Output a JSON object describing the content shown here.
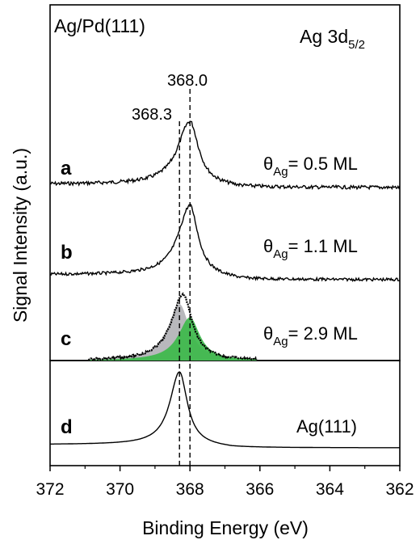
{
  "chart_data": {
    "type": "line",
    "title": "",
    "corner_left": "Ag/Pd(111)",
    "corner_right": {
      "main": "Ag 3d",
      "sub": "5/2"
    },
    "xlabel": "Binding Energy (eV)",
    "ylabel": "Signal Intensity (a.u.)",
    "xlim": [
      372,
      362
    ],
    "x_reversed": true,
    "x_ticks": [
      372,
      370,
      368,
      366,
      364,
      362
    ],
    "y_ticks_shown": false,
    "grid": false,
    "reference_lines": [
      {
        "x": 368.3,
        "label": "368.3",
        "style": "dashed"
      },
      {
        "x": 368.0,
        "label": "368.0",
        "style": "dashed"
      }
    ],
    "series": [
      {
        "panel": "a",
        "coverage": {
          "prefix": "θ",
          "sub": "Ag",
          "text": "= 0.5 ML"
        },
        "background": 0.0,
        "peak_x": 368.0,
        "peak_height": 1.0,
        "noise": true
      },
      {
        "panel": "b",
        "coverage": {
          "prefix": "θ",
          "sub": "Ag",
          "text": "= 1.1 ML"
        },
        "background": 0.0,
        "peak_x": 368.0,
        "peak_height": 1.0,
        "noise": true
      },
      {
        "panel": "c",
        "coverage": {
          "prefix": "θ",
          "sub": "Ag",
          "text": "= 2.9 ML"
        },
        "background": 0.0,
        "peak_x": 368.2,
        "peak_height": 1.0,
        "noise": true,
        "components": [
          {
            "center": 368.3,
            "relative_height": 0.55,
            "color": "#b8b8bc"
          },
          {
            "center": 368.0,
            "relative_height": 0.45,
            "color": "#3cb84a"
          }
        ]
      },
      {
        "panel": "d",
        "label": "Ag(111)",
        "background": 0.0,
        "peak_x": 368.3,
        "peak_height": 1.0,
        "noise": false
      }
    ]
  }
}
